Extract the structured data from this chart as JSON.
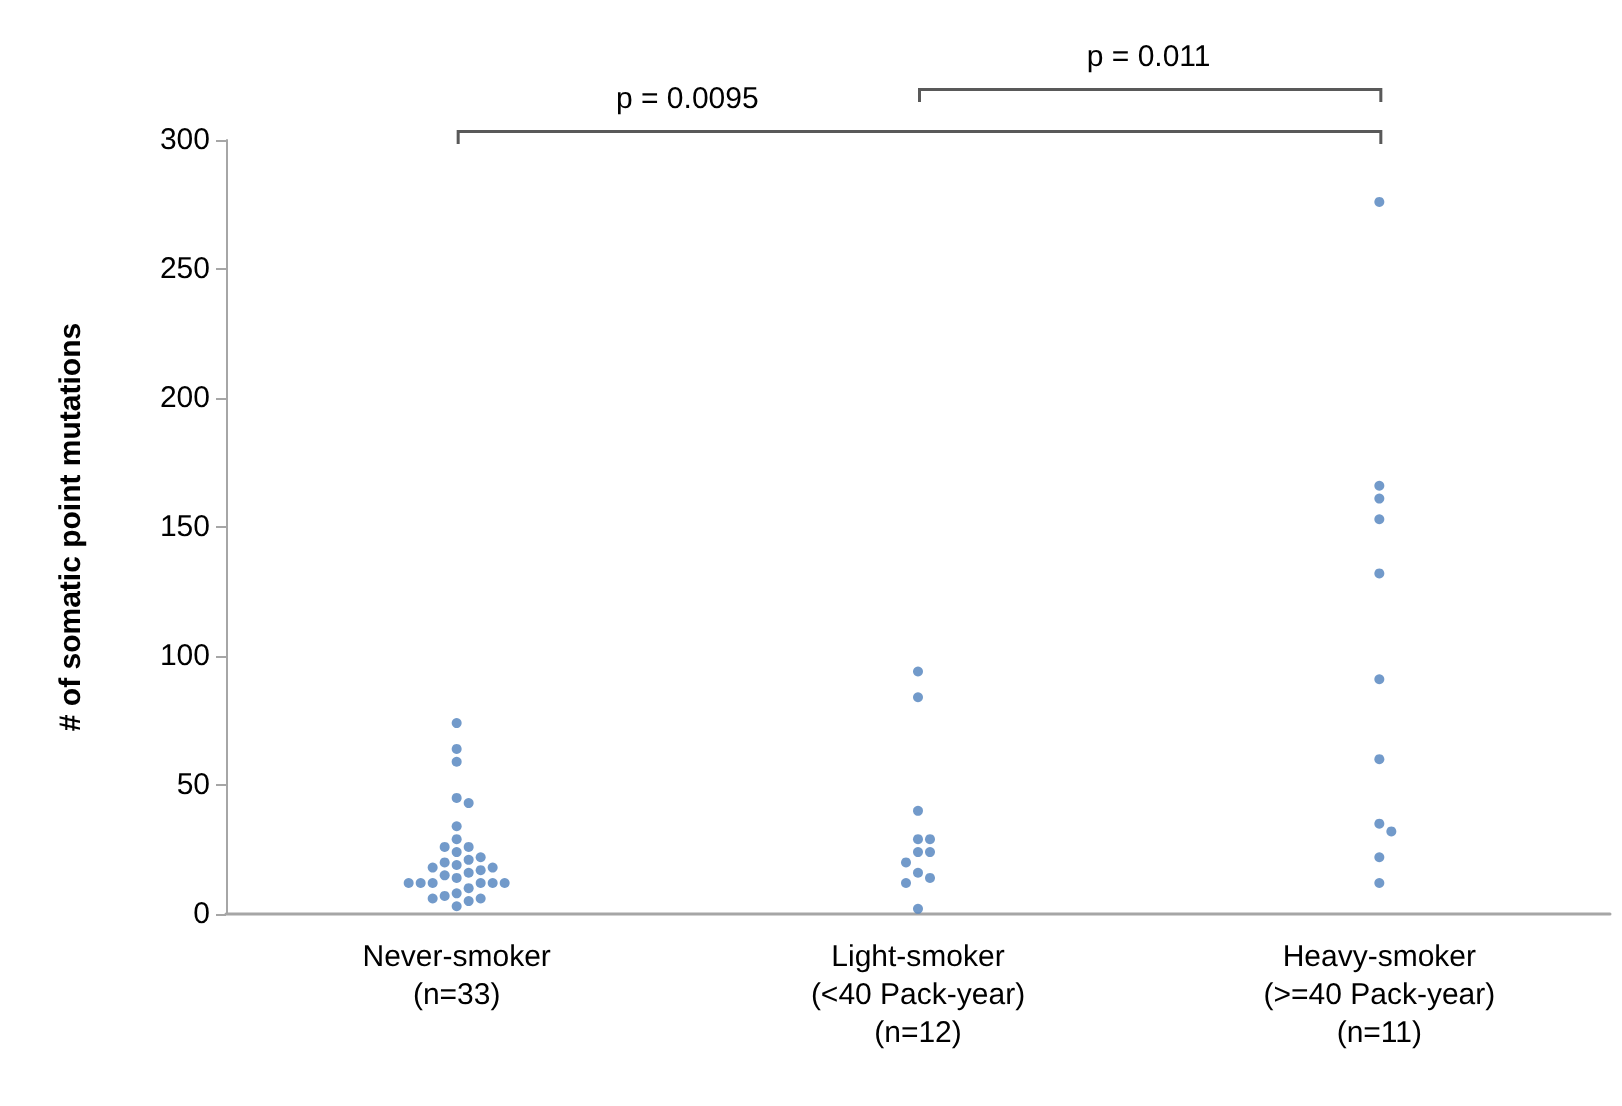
{
  "chart_data": {
    "type": "scatter",
    "ylabel": "# of somatic point mutations",
    "annotations": [
      "p = 0.0095",
      "p = 0.011"
    ],
    "categories": [
      "Never-smoker\n(n=33)",
      "Light-smoker\n(<40 Pack-year)\n(n=12)",
      "Heavy-smoker\n(>=40 Pack-year)\n(n=11)"
    ],
    "ylim": [
      0,
      300
    ],
    "yticks": [
      0,
      50,
      100,
      150,
      200,
      250,
      300
    ],
    "grid": false,
    "marker": "circle",
    "series": [
      {
        "color": "#4f81bd",
        "x": [
          "Never-smoker\n(n=33)",
          "Never-smoker\n(n=33)",
          "Never-smoker\n(n=33)",
          "Never-smoker\n(n=33)",
          "Never-smoker\n(n=33)",
          "Never-smoker\n(n=33)",
          "Never-smoker\n(n=33)",
          "Never-smoker\n(n=33)",
          "Never-smoker\n(n=33)",
          "Never-smoker\n(n=33)",
          "Never-smoker\n(n=33)",
          "Never-smoker\n(n=33)",
          "Never-smoker\n(n=33)",
          "Never-smoker\n(n=33)",
          "Never-smoker\n(n=33)",
          "Never-smoker\n(n=33)",
          "Never-smoker\n(n=33)",
          "Never-smoker\n(n=33)",
          "Never-smoker\n(n=33)",
          "Never-smoker\n(n=33)",
          "Never-smoker\n(n=33)",
          "Never-smoker\n(n=33)",
          "Never-smoker\n(n=33)",
          "Never-smoker\n(n=33)",
          "Never-smoker\n(n=33)",
          "Never-smoker\n(n=33)",
          "Never-smoker\n(n=33)",
          "Never-smoker\n(n=33)",
          "Never-smoker\n(n=33)",
          "Never-smoker\n(n=33)",
          "Never-smoker\n(n=33)",
          "Never-smoker\n(n=33)",
          "Never-smoker\n(n=33)",
          "Light-smoker\n(<40 Pack-year)\n(n=12)",
          "Light-smoker\n(<40 Pack-year)\n(n=12)",
          "Light-smoker\n(<40 Pack-year)\n(n=12)",
          "Light-smoker\n(<40 Pack-year)\n(n=12)",
          "Light-smoker\n(<40 Pack-year)\n(n=12)",
          "Light-smoker\n(<40 Pack-year)\n(n=12)",
          "Light-smoker\n(<40 Pack-year)\n(n=12)",
          "Light-smoker\n(<40 Pack-year)\n(n=12)",
          "Light-smoker\n(<40 Pack-year)\n(n=12)",
          "Light-smoker\n(<40 Pack-year)\n(n=12)",
          "Light-smoker\n(<40 Pack-year)\n(n=12)",
          "Light-smoker\n(<40 Pack-year)\n(n=12)",
          "Heavy-smoker\n(>=40 Pack-year)\n(n=11)",
          "Heavy-smoker\n(>=40 Pack-year)\n(n=11)",
          "Heavy-smoker\n(>=40 Pack-year)\n(n=11)",
          "Heavy-smoker\n(>=40 Pack-year)\n(n=11)",
          "Heavy-smoker\n(>=40 Pack-year)\n(n=11)",
          "Heavy-smoker\n(>=40 Pack-year)\n(n=11)",
          "Heavy-smoker\n(>=40 Pack-year)\n(n=11)",
          "Heavy-smoker\n(>=40 Pack-year)\n(n=11)",
          "Heavy-smoker\n(>=40 Pack-year)\n(n=11)",
          "Heavy-smoker\n(>=40 Pack-year)\n(n=11)",
          "Heavy-smoker\n(>=40 Pack-year)\n(n=11)"
        ],
        "values": [
          74,
          64,
          59,
          45,
          43,
          34,
          29,
          26,
          26,
          24,
          20,
          21,
          22,
          19,
          18,
          18,
          17,
          16,
          15,
          12,
          12,
          12,
          12,
          14,
          10,
          12,
          12,
          8,
          6,
          6,
          7,
          5,
          3,
          94,
          84,
          40,
          29,
          29,
          24,
          24,
          20,
          16,
          14,
          12,
          2,
          276,
          166,
          161,
          153,
          132,
          91,
          60,
          35,
          32,
          22,
          12
        ]
      }
    ]
  }
}
